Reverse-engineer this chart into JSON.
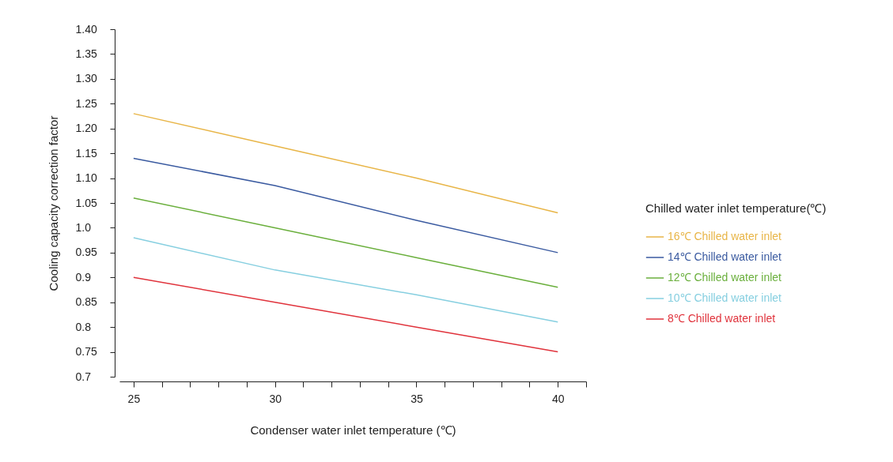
{
  "chart_data": {
    "type": "line",
    "xlabel": "Condenser water inlet temperature (℃)",
    "ylabel": "Cooling capacity correction factor",
    "legend_title": "Chilled water inlet temperature(℃)",
    "legend": "right",
    "grid": false,
    "marker": "none",
    "line_style": "solid",
    "x": [
      25,
      30,
      35,
      40
    ],
    "xlim": [
      24.5,
      41
    ],
    "xticks": [
      25,
      {
        "value": 26,
        "label": null
      },
      {
        "value": 27,
        "label": null
      },
      {
        "value": 28,
        "label": null
      },
      {
        "value": 29,
        "label": null
      },
      30,
      {
        "value": 31,
        "label": null
      },
      {
        "value": 32,
        "label": null
      },
      {
        "value": 33,
        "label": null
      },
      {
        "value": 34,
        "label": null
      },
      35,
      {
        "value": 36,
        "label": null
      },
      {
        "value": 37,
        "label": null
      },
      {
        "value": 38,
        "label": null
      },
      {
        "value": 39,
        "label": null
      },
      40,
      {
        "value": 41,
        "label": null
      }
    ],
    "ylim": [
      0.7,
      1.4
    ],
    "yticks": [
      0.7,
      {
        "value": 0.75,
        "label": "0.75"
      },
      0.8,
      {
        "value": 0.85,
        "label": "0.85"
      },
      0.9,
      {
        "value": 0.95,
        "label": "0.95"
      },
      {
        "value": 1.0,
        "label": "1.0"
      },
      {
        "value": 1.05,
        "label": "1.05"
      },
      {
        "value": 1.1,
        "label": "1.10"
      },
      {
        "value": 1.15,
        "label": "1.15"
      },
      {
        "value": 1.2,
        "label": "1.20"
      },
      {
        "value": 1.25,
        "label": "1.25"
      },
      {
        "value": 1.3,
        "label": "1.30"
      },
      {
        "value": 1.35,
        "label": "1.35"
      },
      {
        "value": 1.4,
        "label": "1.40"
      }
    ],
    "series": [
      {
        "name": "16℃ Chilled water inlet",
        "color": "#e8b547",
        "values": [
          1.23,
          1.165,
          1.1,
          1.03
        ]
      },
      {
        "name": "14℃ Chilled water inlet",
        "color": "#3a5aa0",
        "values": [
          1.14,
          1.085,
          1.015,
          0.95
        ]
      },
      {
        "name": "12℃ Chilled water inlet",
        "color": "#6aaf3c",
        "values": [
          1.06,
          1.0,
          0.94,
          0.88
        ]
      },
      {
        "name": "10℃ Chilled water inlet",
        "color": "#86cfe0",
        "values": [
          0.98,
          0.915,
          0.865,
          0.81
        ]
      },
      {
        "name": "8℃   Chilled water inlet",
        "color": "#e0333c",
        "values": [
          0.9,
          0.85,
          0.8,
          0.75
        ]
      }
    ]
  }
}
